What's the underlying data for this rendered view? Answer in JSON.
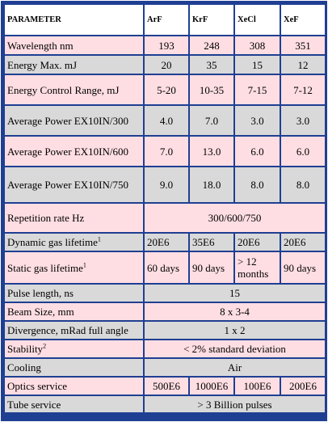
{
  "header": {
    "parameter": "PARAMETER",
    "gases": [
      "ArF",
      "KrF",
      "XeCl",
      "XeF"
    ]
  },
  "rows": {
    "wavelength": {
      "label": "Wavelength nm",
      "values": [
        "193",
        "248",
        "308",
        "351"
      ]
    },
    "energy_max": {
      "label": "Energy Max. mJ",
      "values": [
        "20",
        "35",
        "15",
        "12"
      ]
    },
    "energy_control": {
      "label": "Energy Control Range, mJ",
      "values": [
        "5-20",
        "10-35",
        "7-15",
        "7-12"
      ]
    },
    "avg_power_300": {
      "label": "Average Power EX10IN/300",
      "values": [
        "4.0",
        "7.0",
        "3.0",
        "3.0"
      ]
    },
    "avg_power_600": {
      "label": "Average Power EX10IN/600",
      "values": [
        "7.0",
        "13.0",
        "6.0",
        "6.0"
      ]
    },
    "avg_power_750": {
      "label": "Average Power EX10IN/750",
      "values": [
        "9.0",
        "18.0",
        "8.0",
        "8.0"
      ]
    },
    "repetition": {
      "label": "Repetition rate Hz",
      "value": "300/600/750"
    },
    "dynamic_gas": {
      "label": "Dynamic gas lifetime",
      "sup": "1",
      "values": [
        "20E6",
        "35E6",
        "20E6",
        "20E6"
      ]
    },
    "static_gas": {
      "label": "Static gas lifetime",
      "sup": "1",
      "values": [
        "60 days",
        "90 days",
        "> 12 months",
        "90 days"
      ]
    },
    "pulse_length": {
      "label": "Pulse length, ns",
      "value": "15"
    },
    "beam_size": {
      "label": "Beam Size, mm",
      "value": "8 x 3-4"
    },
    "divergence": {
      "label": "Divergence, mRad full angle",
      "value": "1 x 2"
    },
    "stability": {
      "label": "Stability",
      "sup": "2",
      "value": "< 2% standard deviation"
    },
    "cooling": {
      "label": "Cooling",
      "value": "Air"
    },
    "optics": {
      "label": "Optics service",
      "values": [
        "500E6",
        "1000E6",
        "100E6",
        "200E6"
      ]
    },
    "tube": {
      "label": "Tube service",
      "value": "> 3 Billion pulses"
    }
  },
  "colors": {
    "border": "#1f3f92",
    "pink": "#ffdee3",
    "grey": "#d9d9d9"
  }
}
